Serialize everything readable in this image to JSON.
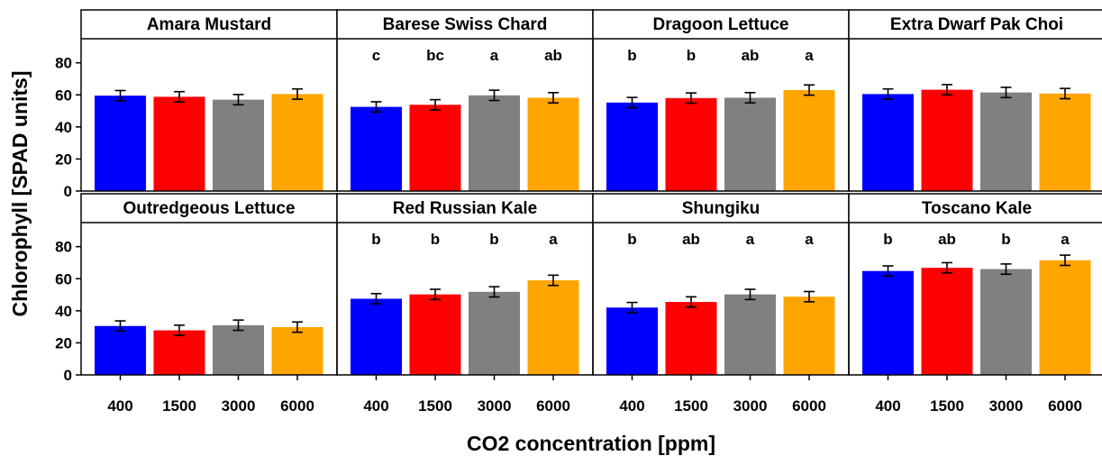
{
  "chart_data": {
    "type": "bar",
    "xlabel": "CO2 concentration [ppm]",
    "ylabel": "Chlorophyll [SPAD units]",
    "categories": [
      "400",
      "1500",
      "3000",
      "6000"
    ],
    "yticks": [
      0,
      20,
      40,
      60,
      80
    ],
    "ylim": [
      0,
      95
    ],
    "colors": [
      "#0000ff",
      "#ff0000",
      "#808080",
      "#ffa500"
    ],
    "panels": [
      {
        "title": "Amara Mustard",
        "values": [
          59.5,
          58.8,
          57.0,
          60.5
        ],
        "errors": [
          3.2,
          3.2,
          3.2,
          3.2
        ],
        "letters": []
      },
      {
        "title": "Barese Swiss Chard",
        "values": [
          52.5,
          53.8,
          59.7,
          58.2
        ],
        "errors": [
          3.2,
          3.2,
          3.2,
          3.2
        ],
        "letters": [
          "c",
          "bc",
          "a",
          "ab"
        ]
      },
      {
        "title": "Dragoon Lettuce",
        "values": [
          55.2,
          58.0,
          58.2,
          63.0
        ],
        "errors": [
          3.2,
          3.2,
          3.2,
          3.2
        ],
        "letters": [
          "b",
          "b",
          "ab",
          "a"
        ]
      },
      {
        "title": "Extra Dwarf Pak Choi",
        "values": [
          60.5,
          63.2,
          61.5,
          60.8
        ],
        "errors": [
          3.2,
          3.2,
          3.2,
          3.2
        ],
        "letters": []
      },
      {
        "title": "Outredgeous Lettuce",
        "values": [
          30.5,
          27.8,
          31.0,
          29.8
        ],
        "errors": [
          3.2,
          3.2,
          3.2,
          3.2
        ],
        "letters": []
      },
      {
        "title": "Red Russian Kale",
        "values": [
          47.5,
          50.2,
          51.8,
          59.0
        ],
        "errors": [
          3.2,
          3.2,
          3.2,
          3.2
        ],
        "letters": [
          "b",
          "b",
          "b",
          "a"
        ]
      },
      {
        "title": "Shungiku",
        "values": [
          42.0,
          45.5,
          50.2,
          48.8
        ],
        "errors": [
          3.2,
          3.2,
          3.2,
          3.2
        ],
        "letters": [
          "b",
          "ab",
          "a",
          "a"
        ]
      },
      {
        "title": "Toscano Kale",
        "values": [
          64.8,
          66.8,
          66.0,
          71.5
        ],
        "errors": [
          3.2,
          3.2,
          3.2,
          3.2
        ],
        "letters": [
          "b",
          "ab",
          "b",
          "a"
        ]
      }
    ]
  }
}
